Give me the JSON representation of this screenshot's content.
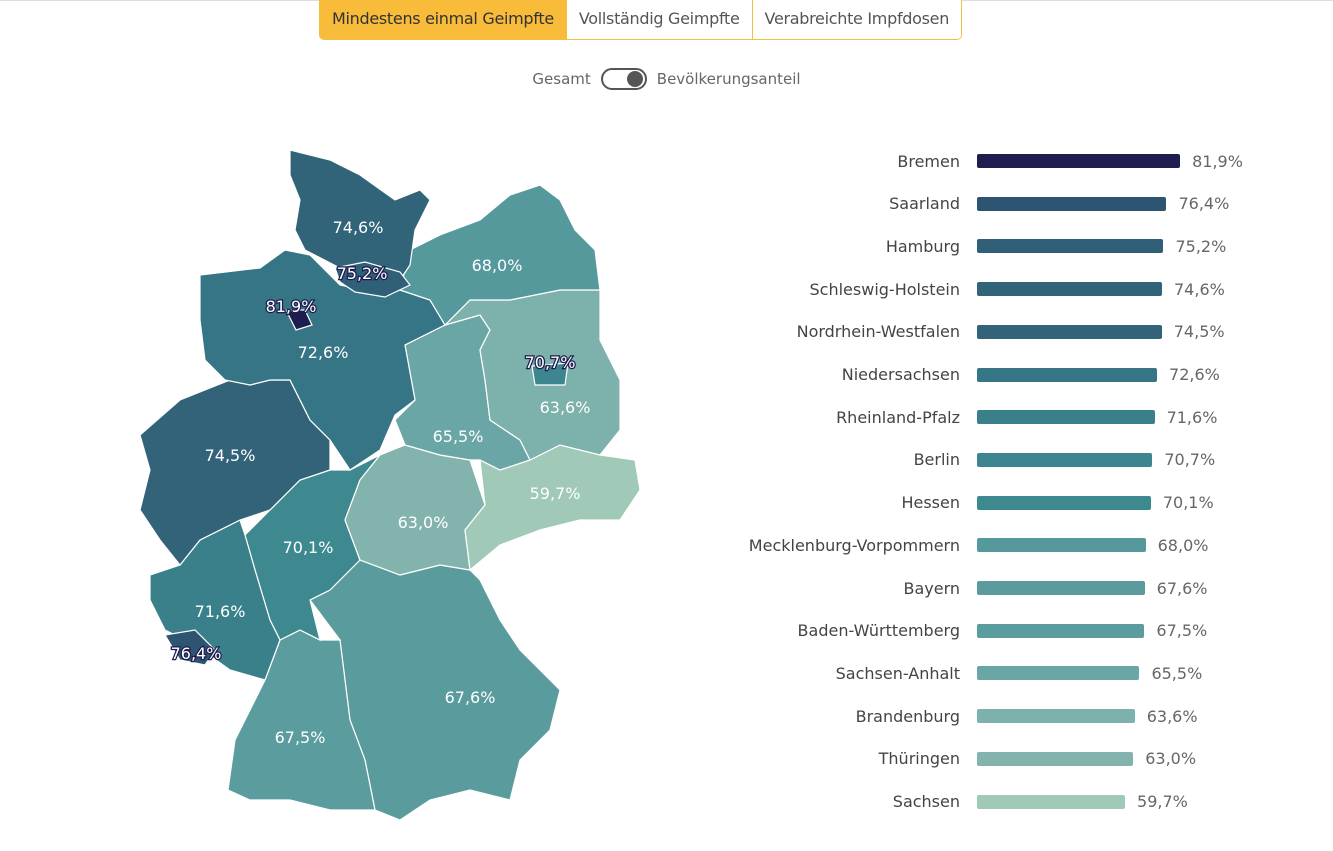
{
  "tabs": [
    "Mindestens einmal Geimpfte",
    "Vollständig Geimpfte",
    "Verabreichte Impfdosen"
  ],
  "active_tab": 0,
  "toggle": {
    "left": "Gesamt",
    "right": "Bevölkerungsanteil",
    "state": "right"
  },
  "chart_data": {
    "type": "bar",
    "orientation": "horizontal",
    "unit": "%",
    "categories": [
      "Bremen",
      "Saarland",
      "Hamburg",
      "Schleswig-Holstein",
      "Nordrhein-Westfalen",
      "Niedersachsen",
      "Rheinland-Pfalz",
      "Berlin",
      "Hessen",
      "Mecklenburg-Vorpommern",
      "Bayern",
      "Baden-Württemberg",
      "Sachsen-Anhalt",
      "Brandenburg",
      "Thüringen",
      "Sachsen"
    ],
    "values": [
      81.9,
      76.4,
      75.2,
      74.6,
      74.5,
      72.6,
      71.6,
      70.7,
      70.1,
      68.0,
      67.6,
      67.5,
      65.5,
      63.6,
      63.0,
      59.7
    ],
    "labels": [
      "81,9%",
      "76,4%",
      "75,2%",
      "74,6%",
      "74,5%",
      "72,6%",
      "71,6%",
      "70,7%",
      "70,1%",
      "68,0%",
      "67,6%",
      "67,5%",
      "65,5%",
      "63,6%",
      "63,0%",
      "59,7%"
    ],
    "colors": [
      "#1d1d4f",
      "#2d5470",
      "#305f78",
      "#316379",
      "#326379",
      "#357585",
      "#3a808a",
      "#3d868f",
      "#3e8990",
      "#56999d",
      "#5a9b9e",
      "#5b9c9f",
      "#6ba6a6",
      "#7db1ab",
      "#82b4ad",
      "#a0c9b7"
    ],
    "map": "choropleth of German states, same values"
  }
}
